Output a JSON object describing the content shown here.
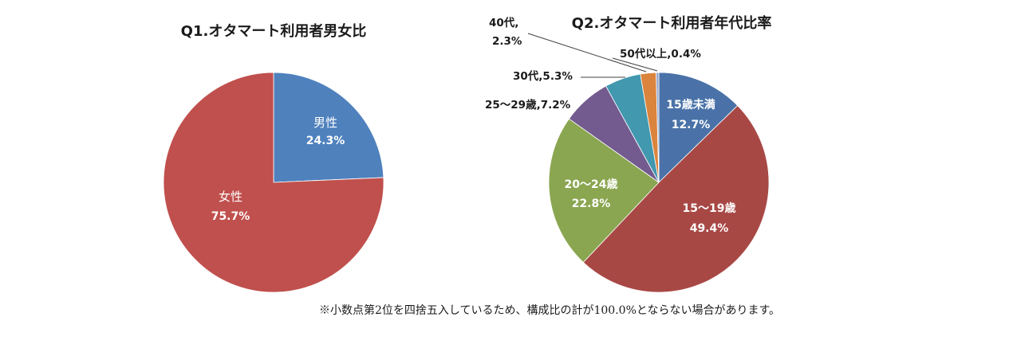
{
  "chart_data": [
    {
      "type": "pie",
      "title": "Q1.オタマート利用者男女比",
      "slices": [
        {
          "name": "男性",
          "value": 24.3,
          "label_name": "男性",
          "label_value": "24.3%",
          "color": "#4f81bd"
        },
        {
          "name": "女性",
          "value": 75.7,
          "label_name": "女性",
          "label_value": "75.7%",
          "color": "#c0504d"
        }
      ]
    },
    {
      "type": "pie",
      "title": "Q2.オタマート利用者年代比率",
      "slices": [
        {
          "name": "15歳未満",
          "value": 12.7,
          "label_name": "15歳未満",
          "label_value": "12.7%",
          "color": "#4a72a8"
        },
        {
          "name": "15〜19歳",
          "value": 49.4,
          "label_name": "15〜19歳",
          "label_value": "49.4%",
          "color": "#a84845"
        },
        {
          "name": "20〜24歳",
          "value": 22.8,
          "label_name": "20〜24歳",
          "label_value": "22.8%",
          "color": "#8aa650"
        },
        {
          "name": "25〜29歳",
          "value": 7.2,
          "label_name": "25〜29歳,",
          "label_value": "7.2%",
          "color": "#735b8f"
        },
        {
          "name": "30代",
          "value": 5.3,
          "label_name": "30代,",
          "label_value": "5.3%",
          "color": "#4198af"
        },
        {
          "name": "40代",
          "value": 2.3,
          "label_name": "40代,",
          "label_value": "2.3%",
          "color": "#db843d"
        },
        {
          "name": "50代以上",
          "value": 0.4,
          "label_name": "50代以上,",
          "label_value": "0.4%",
          "color": "#93a9cf"
        }
      ]
    }
  ],
  "footnote": "※小数点第2位を四捨五入しているため、構成比の計が100.0%とならない場合があります。"
}
